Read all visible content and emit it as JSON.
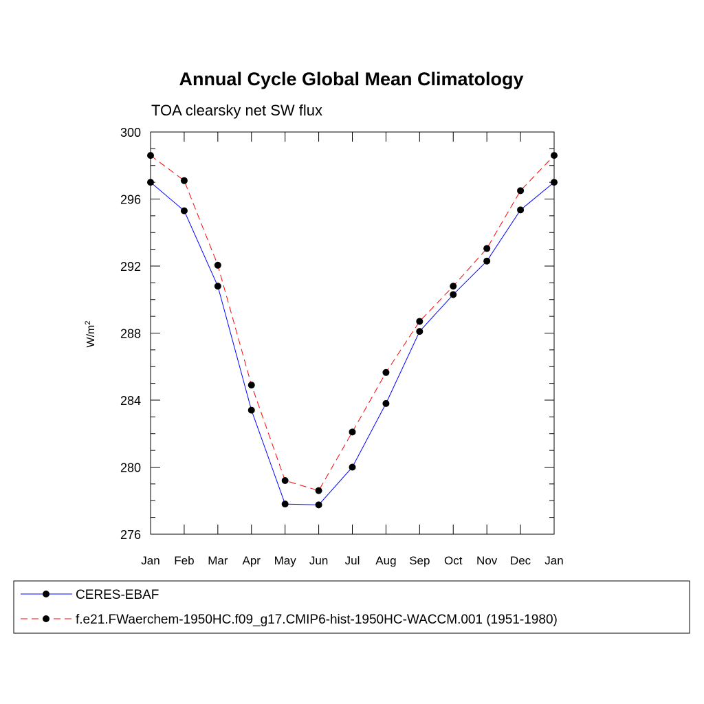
{
  "chart_data": {
    "type": "line",
    "title": "Annual Cycle Global Mean Climatology",
    "subtitle": "TOA clearsky net SW flux",
    "ylabel": "W/m",
    "ylabel_superscript": "2",
    "xlabel": "",
    "categories": [
      "Jan",
      "Feb",
      "Mar",
      "Apr",
      "May",
      "Jun",
      "Jul",
      "Aug",
      "Sep",
      "Oct",
      "Nov",
      "Dec",
      "Jan"
    ],
    "ylim": [
      276,
      300
    ],
    "yticks": [
      "276",
      "280",
      "284",
      "288",
      "292",
      "296",
      "300"
    ],
    "grid": false,
    "legend_position": "bottom",
    "series": [
      {
        "name": "CERES-EBAF",
        "color": "#0000ff",
        "dash": "solid",
        "marker": "filled-circle",
        "values": [
          297.0,
          295.3,
          290.8,
          283.4,
          277.8,
          277.75,
          280.0,
          283.8,
          288.1,
          290.3,
          292.3,
          295.35,
          297.0
        ]
      },
      {
        "name": "f.e21.FWaerchem-1950HC.f09_g17.CMIP6-hist-1950HC-WACCM.001 (1951-1980)",
        "color": "#ff0000",
        "dash": "dashed",
        "marker": "filled-circle",
        "values": [
          298.6,
          297.1,
          292.05,
          284.9,
          279.2,
          278.6,
          282.1,
          285.65,
          288.7,
          290.8,
          293.05,
          296.5,
          298.6
        ]
      }
    ]
  }
}
